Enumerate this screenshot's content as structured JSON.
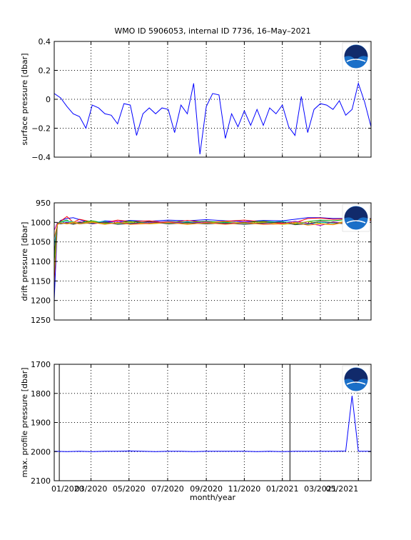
{
  "title": "WMO ID 5906053, internal ID 7736, 16–May–2021",
  "colors": {
    "line": "#0000ff",
    "axis": "#000000",
    "noaa_blue": "#1a6fc8",
    "noaa_navy": "#112a6b"
  },
  "icons": [
    "noaa-logo-icon"
  ],
  "chart_data": [
    {
      "type": "line",
      "ylabel": "surface pressure [dbar]",
      "ylim": [
        -0.4,
        0.4
      ],
      "yticks": [
        0.4,
        0.2,
        0,
        -0.2,
        -0.4
      ],
      "ytick_labels": [
        "0.4",
        "0.2",
        "0",
        "−0.2",
        "−0.4"
      ],
      "y_reversed": false,
      "grid": true,
      "xlim": [
        0,
        500
      ],
      "series": [
        {
          "x": [
            0,
            10,
            20,
            30,
            40,
            50,
            60,
            70,
            80,
            90,
            100,
            110,
            120,
            130,
            140,
            150,
            160,
            170,
            180,
            190,
            200,
            210,
            220,
            230,
            240,
            250,
            260,
            270,
            280,
            290,
            300,
            310,
            320,
            330,
            340,
            350,
            360,
            370,
            380,
            390,
            400,
            410,
            420,
            430,
            440,
            450,
            460,
            470,
            480,
            490,
            500
          ],
          "y": [
            0.04,
            0.01,
            -0.05,
            -0.1,
            -0.12,
            -0.2,
            -0.04,
            -0.06,
            -0.1,
            -0.11,
            -0.17,
            -0.03,
            -0.04,
            -0.25,
            -0.1,
            -0.06,
            -0.1,
            -0.06,
            -0.07,
            -0.23,
            -0.04,
            -0.1,
            0.11,
            -0.38,
            -0.05,
            0.04,
            0.03,
            -0.27,
            -0.1,
            -0.19,
            -0.08,
            -0.18,
            -0.07,
            -0.18,
            -0.06,
            -0.1,
            -0.04,
            -0.19,
            -0.25,
            0.02,
            -0.23,
            -0.07,
            -0.03,
            -0.04,
            -0.07,
            -0.01,
            -0.11,
            -0.07,
            0.11,
            -0.02,
            -0.19
          ]
        }
      ]
    },
    {
      "type": "line",
      "ylabel": "drift pressure [dbar]",
      "ylim": [
        950,
        1250
      ],
      "yticks": [
        950,
        1000,
        1050,
        1100,
        1150,
        1200,
        1250
      ],
      "ytick_labels": [
        "950",
        "1000",
        "1050",
        "1100",
        "1150",
        "1200",
        "1250"
      ],
      "y_reversed": true,
      "grid": true,
      "xlim": [
        0,
        500
      ],
      "series": [
        {
          "x": [
            0,
            5,
            10,
            20,
            30,
            40,
            60,
            80,
            100,
            120,
            150,
            180,
            210,
            240,
            270,
            300,
            330,
            360,
            380,
            400,
            420,
            440,
            460,
            480,
            500
          ],
          "y": [
            1200,
            1005,
            995,
            990,
            988,
            993,
            1003,
            996,
            998,
            995,
            997,
            994,
            996,
            993,
            996,
            998,
            995,
            996,
            992,
            988,
            988,
            990,
            990,
            990,
            990
          ]
        },
        {
          "x": [
            0,
            5,
            10,
            20,
            30,
            40,
            60,
            80,
            100,
            120,
            150,
            180,
            210,
            240,
            270,
            300,
            330,
            360,
            380,
            400,
            420,
            440,
            460,
            480,
            500
          ],
          "y": [
            1150,
            1003,
            997,
            985,
            1000,
            992,
            999,
            1001,
            994,
            998,
            996,
            1001,
            995,
            1000,
            997,
            994,
            999,
            1002,
            1001,
            990,
            989,
            992,
            991,
            989,
            991
          ]
        },
        {
          "x": [
            0,
            5,
            10,
            20,
            30,
            40,
            60,
            80,
            100,
            120,
            150,
            180,
            210,
            240,
            270,
            300,
            330,
            360,
            380,
            400,
            420,
            440,
            460,
            480,
            500
          ],
          "y": [
            1100,
            1002,
            998,
            994,
            1003,
            1000,
            996,
            1002,
            1001,
            997,
            1002,
            997,
            1000,
            997,
            1001,
            1000,
            997,
            1000,
            1005,
            998,
            994,
            996,
            993,
            992,
            992
          ]
        },
        {
          "x": [
            0,
            5,
            10,
            20,
            30,
            40,
            60,
            80,
            100,
            120,
            150,
            180,
            210,
            240,
            270,
            300,
            330,
            360,
            380,
            400,
            420,
            440,
            460,
            480,
            500
          ],
          "y": [
            1060,
            1004,
            1000,
            997,
            998,
            1004,
            1001,
            997,
            1003,
            1002,
            999,
            1003,
            998,
            1003,
            999,
            1003,
            1001,
            997,
            999,
            1005,
            1000,
            1002,
            998,
            995,
            994
          ]
        },
        {
          "x": [
            0,
            5,
            10,
            20,
            30,
            40,
            60,
            80,
            100,
            120,
            150,
            180,
            210,
            240,
            270,
            300,
            330,
            360,
            380,
            400,
            420,
            440,
            460,
            480,
            500
          ],
          "y": [
            1020,
            1001,
            1003,
            1000,
            1002,
            998,
            1004,
            1000,
            997,
            1004,
            1001,
            998,
            1002,
            999,
            1004,
            998,
            1004,
            1003,
            997,
            1002,
            1008,
            999,
            1001,
            997,
            996
          ]
        },
        {
          "x": [
            0,
            5,
            10,
            20,
            30,
            40,
            60,
            80,
            100,
            120,
            150,
            180,
            210,
            240,
            270,
            300,
            330,
            360,
            380,
            400,
            420,
            440,
            460,
            480,
            500
          ],
          "y": [
            1130,
            1006,
            1002,
            1003,
            999,
            1002,
            998,
            1004,
            1002,
            1000,
            1004,
            1001,
            1004,
            1002,
            998,
            1002,
            1000,
            1005,
            1003,
            998,
            1003,
            1005,
            996,
            999,
            993
          ]
        },
        {
          "x": [
            0,
            5,
            10,
            20,
            30,
            40,
            60,
            80,
            100,
            120,
            150,
            180,
            210,
            240,
            270,
            300,
            330,
            360,
            380,
            400,
            420,
            440,
            460,
            480,
            500
          ],
          "y": [
            1080,
            1002,
            1004,
            1001,
            1005,
            1001,
            1003,
            999,
            1005,
            1003,
            998,
            1004,
            1001,
            1004,
            1002,
            1005,
            1002,
            999,
            1006,
            1004,
            997,
            1001,
            1004,
            994,
            995
          ]
        },
        {
          "x": [
            0,
            5,
            10,
            20,
            30,
            40,
            60,
            80,
            100,
            120,
            150,
            180,
            210,
            240,
            270,
            300,
            330,
            360,
            380,
            400,
            420,
            440,
            460,
            480,
            500
          ],
          "y": [
            1040,
            1005,
            1001,
            1004,
            1001,
            1004,
            1000,
            1005,
            1000,
            1005,
            1003,
            1000,
            1005,
            1001,
            1005,
            1001,
            1005,
            1004,
            1000,
            1007,
            1004,
            1006,
            999,
            998,
            994
          ]
        }
      ]
    },
    {
      "type": "line",
      "ylabel": "max. profile pressure [dbar]",
      "ylim": [
        1700,
        2100
      ],
      "yticks": [
        1700,
        1800,
        1900,
        2000,
        2100
      ],
      "ytick_labels": [
        "1700",
        "1800",
        "1900",
        "2000",
        "2100"
      ],
      "y_reversed": true,
      "grid": true,
      "xlim": [
        0,
        500
      ],
      "vlines": [
        8,
        372
      ],
      "series": [
        {
          "x": [
            0,
            20,
            40,
            60,
            80,
            100,
            120,
            140,
            160,
            180,
            200,
            220,
            240,
            260,
            280,
            300,
            320,
            340,
            360,
            380,
            400,
            420,
            440,
            460,
            470,
            480,
            490,
            500
          ],
          "y": [
            1999,
            2000,
            1999,
            2000,
            1999,
            1999,
            1998,
            1999,
            2000,
            1999,
            1999,
            2000,
            1999,
            1999,
            1999,
            1999,
            2000,
            1999,
            2000,
            1999,
            1999,
            1999,
            1999,
            1998,
            1808,
            1999,
            1999,
            1999
          ]
        }
      ]
    }
  ],
  "x_axis": {
    "ticks": [
      0,
      58,
      118,
      179,
      240,
      300,
      360,
      420,
      480
    ],
    "tick_labels": [
      "01/2020",
      "03/2020",
      "05/2020",
      "07/2020",
      "09/2020",
      "11/2020",
      "01/2021",
      "03/2021",
      "05/2021"
    ],
    "label": "month/year"
  }
}
